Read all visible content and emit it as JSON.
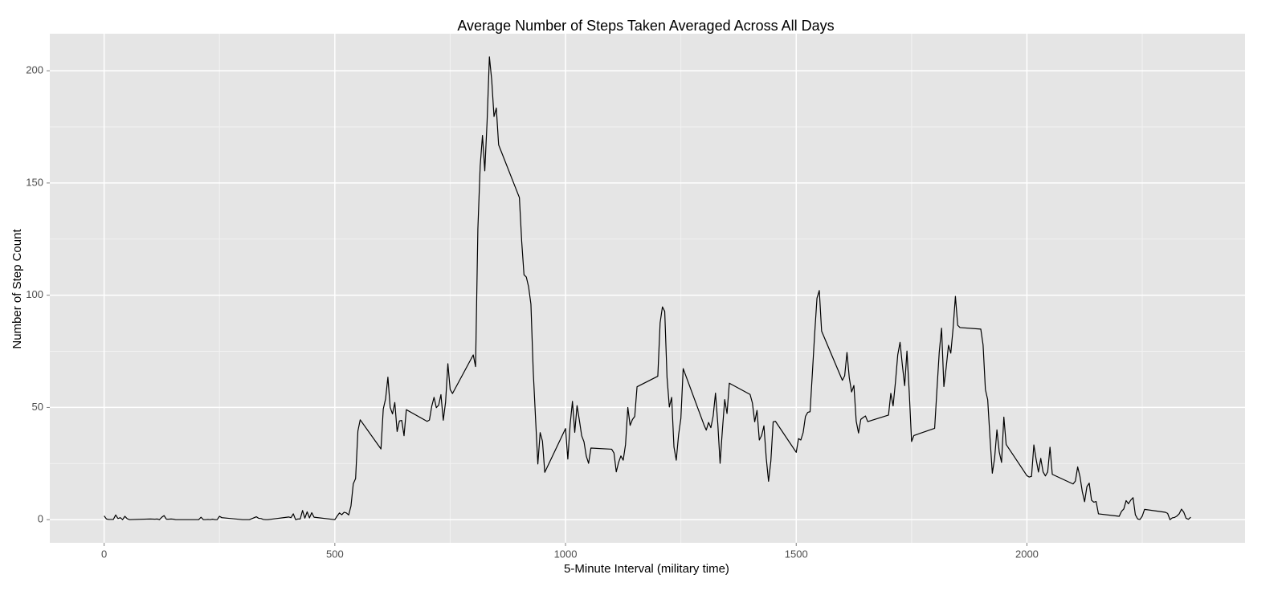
{
  "chart_data": {
    "type": "line",
    "title": "Average Number of Steps Taken Averaged Across All Days",
    "x_label": "5-Minute Interval (military time)",
    "y_label": "Number of Step Count",
    "x": [
      0,
      5,
      10,
      20,
      25,
      30,
      35,
      40,
      45,
      50,
      55,
      100,
      110,
      115,
      120,
      125,
      130,
      135,
      140,
      145,
      150,
      155,
      200,
      205,
      210,
      215,
      220,
      225,
      230,
      235,
      240,
      245,
      250,
      255,
      300,
      315,
      330,
      335,
      340,
      345,
      350,
      355,
      400,
      405,
      410,
      415,
      420,
      425,
      430,
      435,
      440,
      445,
      450,
      455,
      500,
      505,
      510,
      515,
      520,
      525,
      530,
      535,
      540,
      545,
      550,
      555,
      600,
      605,
      610,
      615,
      620,
      625,
      630,
      635,
      640,
      645,
      650,
      655,
      700,
      705,
      710,
      715,
      720,
      725,
      730,
      735,
      740,
      745,
      750,
      755,
      800,
      805,
      810,
      815,
      820,
      825,
      830,
      835,
      840,
      845,
      850,
      855,
      900,
      905,
      910,
      915,
      920,
      925,
      930,
      935,
      940,
      945,
      950,
      955,
      1000,
      1005,
      1010,
      1015,
      1020,
      1025,
      1030,
      1035,
      1040,
      1045,
      1050,
      1055,
      1100,
      1105,
      1110,
      1115,
      1120,
      1125,
      1130,
      1135,
      1140,
      1145,
      1150,
      1155,
      1200,
      1205,
      1210,
      1215,
      1220,
      1225,
      1230,
      1235,
      1240,
      1245,
      1250,
      1255,
      1300,
      1305,
      1310,
      1315,
      1320,
      1325,
      1330,
      1335,
      1340,
      1345,
      1350,
      1355,
      1400,
      1405,
      1410,
      1415,
      1420,
      1425,
      1430,
      1435,
      1440,
      1445,
      1450,
      1455,
      1500,
      1505,
      1510,
      1515,
      1520,
      1525,
      1530,
      1535,
      1540,
      1545,
      1550,
      1555,
      1600,
      1605,
      1610,
      1615,
      1620,
      1625,
      1630,
      1635,
      1640,
      1645,
      1650,
      1655,
      1700,
      1705,
      1710,
      1715,
      1720,
      1725,
      1730,
      1735,
      1740,
      1745,
      1750,
      1755,
      1800,
      1805,
      1810,
      1815,
      1820,
      1825,
      1830,
      1835,
      1840,
      1845,
      1850,
      1855,
      1900,
      1905,
      1910,
      1915,
      1920,
      1925,
      1930,
      1935,
      1940,
      1945,
      1950,
      1955,
      2000,
      2005,
      2010,
      2015,
      2020,
      2025,
      2030,
      2035,
      2040,
      2045,
      2050,
      2055,
      2100,
      2105,
      2110,
      2115,
      2120,
      2125,
      2130,
      2135,
      2140,
      2145,
      2150,
      2155,
      2200,
      2205,
      2210,
      2215,
      2220,
      2225,
      2230,
      2235,
      2240,
      2245,
      2250,
      2255,
      2300,
      2305,
      2310,
      2315,
      2320,
      2325,
      2330,
      2335,
      2340,
      2345,
      2350,
      2355
    ],
    "values": [
      1.7,
      0.3,
      0.1,
      0.1,
      2.1,
      0.5,
      0.9,
      0,
      1.5,
      0.4,
      0,
      0.3,
      0.2,
      0.3,
      0,
      1.1,
      1.8,
      0.2,
      0.2,
      0.3,
      0.2,
      0,
      0,
      0,
      1.1,
      0,
      0,
      0.1,
      0,
      0.2,
      0,
      0,
      1.5,
      0.9,
      0,
      0,
      1.3,
      0.6,
      0.5,
      0.1,
      0,
      0,
      1.2,
      0.9,
      2.6,
      0,
      0.3,
      0.3,
      4.1,
      0.7,
      3.5,
      0.8,
      3.1,
      1.1,
      0,
      1.6,
      3,
      2.2,
      3.3,
      3,
      2.1,
      6.1,
      16,
      18.3,
      39.5,
      44.5,
      31.5,
      49.3,
      53.8,
      63.5,
      50,
      47.1,
      52.2,
      39.3,
      44,
      44.2,
      37.4,
      49,
      43.8,
      44.4,
      50.5,
      54.5,
      49.9,
      51,
      55.7,
      44.3,
      52.3,
      69.5,
      58,
      56.2,
      73.4,
      68.2,
      129.4,
      157.5,
      171.2,
      155.4,
      177.3,
      206.2,
      195.9,
      179.6,
      183.4,
      167,
      143.5,
      124,
      109.1,
      108.1,
      103.7,
      96,
      66.2,
      45.2,
      24.8,
      38.8,
      35,
      21.1,
      40.6,
      27,
      42.4,
      52.7,
      38.9,
      50.8,
      44.3,
      37.4,
      34.7,
      28.3,
      25.1,
      31.9,
      31.4,
      29.7,
      21.3,
      25.5,
      28.4,
      26.5,
      33.4,
      50,
      42,
      44.6,
      46,
      59.2,
      63.9,
      87.7,
      94.8,
      92.8,
      63.4,
      50.2,
      54.5,
      32.4,
      26.5,
      37.7,
      45.1,
      67.3,
      42.3,
      39.9,
      43.3,
      41,
      46.2,
      56.4,
      42.8,
      25.1,
      40,
      53.5,
      47.3,
      60.8,
      55.8,
      52,
      43.6,
      48.7,
      35.5,
      37.5,
      41.8,
      27.5,
      17.1,
      26.1,
      43.6,
      43.8,
      30,
      36.1,
      35.5,
      38.8,
      46,
      47.8,
      48.1,
      65.3,
      82.9,
      98.7,
      102.1,
      84,
      62.1,
      64.1,
      74.5,
      63.2,
      56.9,
      59.8,
      43.9,
      38.6,
      44.7,
      45.5,
      46.2,
      43.7,
      46.6,
      56.3,
      50.7,
      61.2,
      73.4,
      79,
      68.9,
      59.7,
      75.1,
      56.5,
      34.8,
      37.5,
      40.7,
      58,
      74.7,
      85.3,
      59.3,
      67.8,
      77.7,
      74.2,
      85.3,
      99.5,
      86.6,
      85.6,
      84.9,
      77.8,
      58,
      53.4,
      36.3,
      20.7,
      27.4,
      40,
      30.2,
      25.5,
      45.7,
      33.5,
      19.6,
      19,
      19.3,
      33.3,
      26.8,
      21.2,
      27.3,
      21.3,
      19.5,
      21.3,
      32.3,
      20.2,
      15.9,
      17.2,
      23.5,
      19.2,
      12.5,
      8,
      14.7,
      16.3,
      8.7,
      7.8,
      8.1,
      2.6,
      1.5,
      3.7,
      4.8,
      8.5,
      7.1,
      8.7,
      9.8,
      2.2,
      0.3,
      0.1,
      1.6,
      4.6,
      3.3,
      2.8,
      0,
      0.8,
      1,
      1.6,
      2.6,
      4.7,
      3.3,
      0.6,
      0.2,
      1.1
    ],
    "color": "#000000",
    "xlim": [
      -117.75,
      2472.75
    ],
    "xticks": [
      0,
      500,
      1000,
      1500,
      2000
    ],
    "ylim": [
      -10.3,
      216.5
    ],
    "yticks": [
      0,
      50,
      100,
      150,
      200
    ],
    "grid": true
  }
}
